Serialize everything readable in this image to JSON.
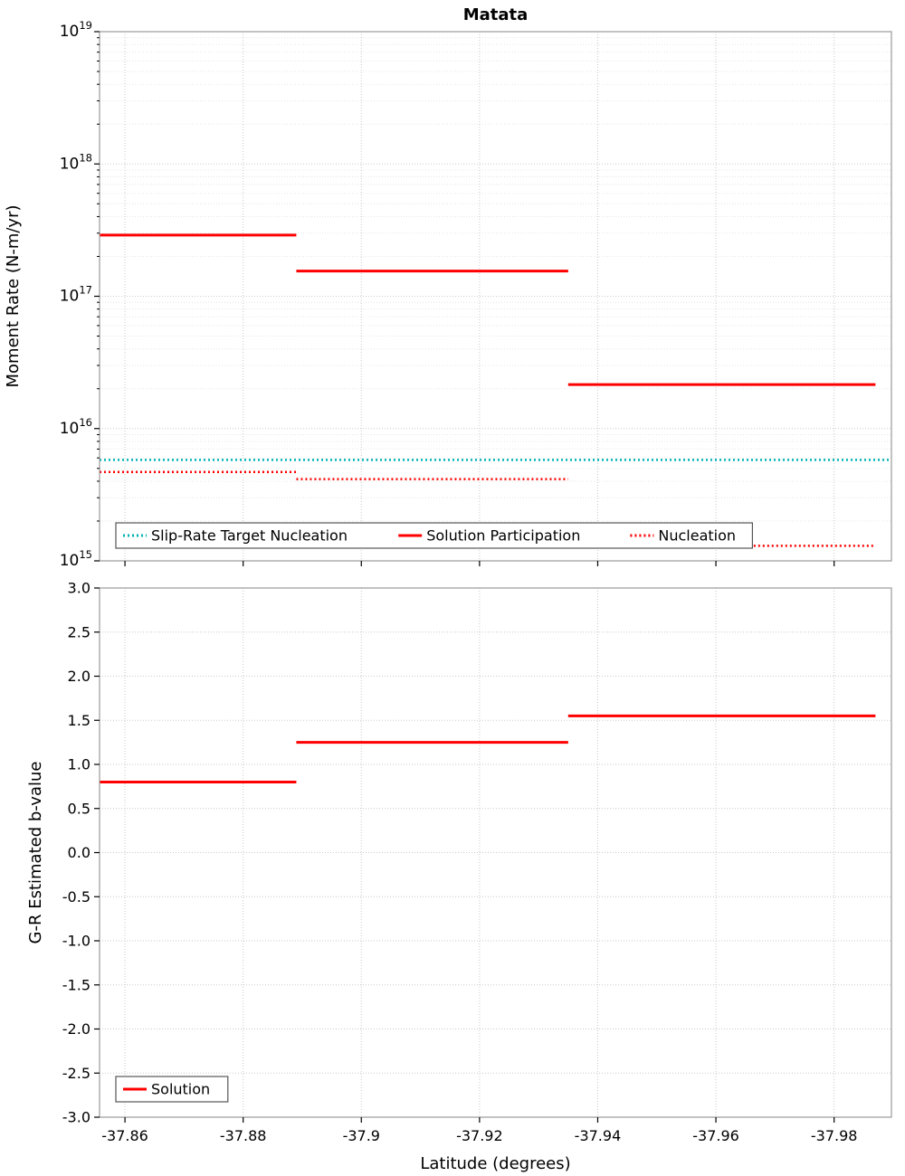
{
  "figure_title": "Matata",
  "colors": {
    "red": "#ff0000",
    "teal": "#00b2b2",
    "grid_major": "#c9c9c9",
    "grid_minor": "#e5e5e5",
    "axis": "#9a9a9a",
    "text": "#000000",
    "legend_border": "#555555",
    "background": "#ffffff"
  },
  "chart_data": [
    {
      "type": "line",
      "title": "Matata",
      "ylabel": "Moment Rate (N-m/yr)",
      "xlabel": "",
      "yscale": "log",
      "ylim": [
        1000000000000000.0,
        1e+19
      ],
      "y_tick_exponents": [
        19,
        18,
        17,
        16,
        15
      ],
      "xlim": [
        -37.8557,
        -37.9897
      ],
      "x_ticks": [
        -37.86,
        -37.88,
        -37.9,
        -37.92,
        -37.94,
        -37.96,
        -37.98
      ],
      "x_tick_labels": [],
      "grid": true,
      "series": [
        {
          "name": "Slip-Rate Target Nucleation",
          "color": "#00b2b2",
          "dash": "dotted",
          "segments": [
            {
              "x0": -37.8557,
              "x1": -37.9897,
              "y": 5800000000000000.0
            }
          ]
        },
        {
          "name": "Solution Participation",
          "color": "#ff0000",
          "dash": "solid",
          "segments": [
            {
              "x0": -37.8557,
              "x1": -37.889,
              "y": 2.9e+17
            },
            {
              "x0": -37.889,
              "x1": -37.935,
              "y": 1.55e+17
            },
            {
              "x0": -37.935,
              "x1": -37.987,
              "y": 2.15e+16
            }
          ]
        },
        {
          "name": "Nucleation",
          "color": "#ff0000",
          "dash": "dotted",
          "segments": [
            {
              "x0": -37.8557,
              "x1": -37.889,
              "y": 4700000000000000.0
            },
            {
              "x0": -37.889,
              "x1": -37.935,
              "y": 4150000000000000.0
            },
            {
              "x0": -37.935,
              "x1": -37.987,
              "y": 1300000000000000.0
            }
          ]
        }
      ],
      "legend": {
        "entries": [
          "Slip-Rate Target Nucleation",
          "Solution Participation",
          "Nucleation"
        ],
        "position": "bottom-left-wide"
      }
    },
    {
      "type": "line",
      "title": "",
      "ylabel": "G-R Estimated b-value",
      "xlabel": "Latitude (degrees)",
      "yscale": "linear",
      "ylim": [
        -3.0,
        3.0
      ],
      "y_ticks": [
        3.0,
        2.5,
        2.0,
        1.5,
        1.0,
        0.5,
        0.0,
        -0.5,
        -1.0,
        -1.5,
        -2.0,
        -2.5,
        -3.0
      ],
      "y_tick_labels": [
        "3.0",
        "2.5",
        "2.0",
        "1.5",
        "1.0",
        "0.5",
        "0.0",
        "-0.5",
        "-1.0",
        "-1.5",
        "-2.0",
        "-2.5",
        "-3.0"
      ],
      "xlim": [
        -37.8557,
        -37.9897
      ],
      "x_ticks": [
        -37.86,
        -37.88,
        -37.9,
        -37.92,
        -37.94,
        -37.96,
        -37.98
      ],
      "x_tick_labels": [
        "-37.86",
        "-37.88",
        "-37.9",
        "-37.92",
        "-37.94",
        "-37.96",
        "-37.98"
      ],
      "grid": true,
      "series": [
        {
          "name": "Solution",
          "color": "#ff0000",
          "dash": "solid",
          "segments": [
            {
              "x0": -37.8557,
              "x1": -37.889,
              "y": 0.8
            },
            {
              "x0": -37.889,
              "x1": -37.935,
              "y": 1.25
            },
            {
              "x0": -37.935,
              "x1": -37.987,
              "y": 1.55
            }
          ]
        }
      ],
      "legend": {
        "entries": [
          "Solution"
        ],
        "position": "bottom-left"
      }
    }
  ]
}
